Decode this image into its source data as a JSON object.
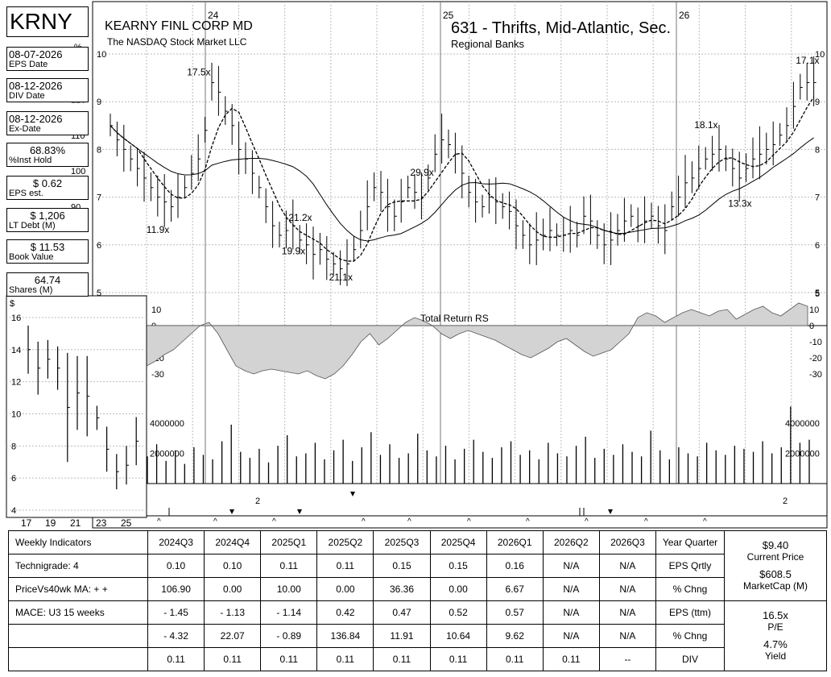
{
  "header": {
    "ticker": "KRNY",
    "company": "KEARNY FINL CORP MD",
    "exchange": "The NASDAQ Stock Market LLC",
    "industry": "631 - Thrifts, Mid-Atlantic, Sec.",
    "sector": "Regional Banks"
  },
  "info_boxes": [
    {
      "value": "08-07-2026",
      "label": "EPS Date",
      "align": "left"
    },
    {
      "value": "08-12-2026",
      "label": "DIV Date",
      "align": "left"
    },
    {
      "value": "08-12-2026",
      "label": "Ex-Date",
      "align": "left"
    },
    {
      "value": "68.83%",
      "label": "%Inst Hold",
      "align": "center"
    },
    {
      "value": "$ 0.62",
      "label": "EPS est.",
      "align": "center"
    },
    {
      "value": "$ 1,206",
      "label": "LT Debt (M)",
      "align": "center"
    },
    {
      "value": "$ 11.53",
      "label": "Book Value",
      "align": "center"
    },
    {
      "value": "64.74",
      "label": "Shares (M)",
      "align": "center"
    }
  ],
  "chart_data": [
    {
      "type": "line",
      "name": "weekly-price-chart",
      "x_labels": [
        "24",
        "25",
        "26"
      ],
      "y_ticks": [
        5,
        6,
        7,
        8,
        9,
        10
      ],
      "percent_axis_label": "%",
      "percent_ticks": [
        70,
        80,
        90,
        100,
        110,
        120,
        130
      ],
      "ylim": [
        5,
        10
      ],
      "weekly_close": [
        8.5,
        8.2,
        8.0,
        7.8,
        7.6,
        7.4,
        7.2,
        7.0,
        6.9,
        6.8,
        7.0,
        7.2,
        7.5,
        7.8,
        8.4,
        9.4,
        9.2,
        8.8,
        8.5,
        8.0,
        7.8,
        7.5,
        7.2,
        6.8,
        6.4,
        6.2,
        6.3,
        6.4,
        6.1,
        6.0,
        5.8,
        5.9,
        5.7,
        5.6,
        5.5,
        5.6,
        5.9,
        6.3,
        6.8,
        7.2,
        7.1,
        6.8,
        6.6,
        6.9,
        7.2,
        7.1,
        7.0,
        7.4,
        7.9,
        8.2,
        8.1,
        7.9,
        7.5,
        7.1,
        6.9,
        6.8,
        7.0,
        6.9,
        6.8,
        6.7,
        6.4,
        6.2,
        6.0,
        6.1,
        6.2,
        6.3,
        6.2,
        6.2,
        6.3,
        6.2,
        6.6,
        6.5,
        6.2,
        6.0,
        6.1,
        6.3,
        6.5,
        6.6,
        6.4,
        6.5,
        6.6,
        6.4,
        6.3,
        6.8,
        7.0,
        7.3,
        7.4,
        7.6,
        7.8,
        7.9,
        8.0,
        7.8,
        7.6,
        7.4,
        7.6,
        7.8,
        7.9,
        8.0,
        8.1,
        8.3,
        8.5,
        8.9,
        9.3,
        9.4,
        9.4
      ],
      "pe_annotations": [
        {
          "label": "17.5x",
          "week": 13,
          "price": 9.55
        },
        {
          "label": "11.9x",
          "week": 7,
          "price": 6.25
        },
        {
          "label": "21.2x",
          "week": 28,
          "price": 6.5
        },
        {
          "label": "19.9x",
          "week": 27,
          "price": 5.8
        },
        {
          "label": "21.1x",
          "week": 34,
          "price": 5.25
        },
        {
          "label": "29.9x",
          "week": 46,
          "price": 7.45
        },
        {
          "label": "18.1x",
          "week": 88,
          "price": 8.45
        },
        {
          "label": "13.3x",
          "week": 93,
          "price": 6.8
        },
        {
          "label": "17.1x",
          "week": 103,
          "price": 9.8
        }
      ]
    },
    {
      "type": "area",
      "name": "total-return-rs",
      "title": "Total Return RS",
      "y_ticks": [
        10,
        0,
        -10,
        -20,
        -30
      ],
      "ylim": [
        -35,
        15
      ],
      "values": [
        -25,
        -22,
        -18,
        -15,
        -10,
        -5,
        0,
        2,
        -5,
        -15,
        -25,
        -28,
        -30,
        -28,
        -27,
        -28,
        -29,
        -30,
        -28,
        -31,
        -33,
        -30,
        -25,
        -18,
        -10,
        -5,
        -12,
        -8,
        -3,
        2,
        5,
        3,
        0,
        -5,
        -8,
        -5,
        -3,
        -5,
        -7,
        -9,
        -12,
        -15,
        -18,
        -20,
        -17,
        -14,
        -10,
        -8,
        -12,
        -16,
        -19,
        -17,
        -15,
        -10,
        -5,
        5,
        8,
        6,
        2,
        5,
        8,
        10,
        8,
        6,
        9,
        10,
        4,
        7,
        10,
        12,
        8,
        6,
        10,
        14,
        12
      ]
    },
    {
      "type": "bar",
      "name": "weekly-volume",
      "y_ticks": [
        4000000,
        2000000
      ],
      "y_tick_labels": [
        "4000000",
        "2000000"
      ],
      "ylim": [
        0,
        5000000
      ],
      "values": [
        1800000,
        2600000,
        1500000,
        2200000,
        1300000,
        2400000,
        1900000,
        1600000,
        2800000,
        3900000,
        2100000,
        1700000,
        2300000,
        1400000,
        2500000,
        3200000,
        1800000,
        2000000,
        2700000,
        1600000,
        2200000,
        2900000,
        1500000,
        2400000,
        3400000,
        1900000,
        2600000,
        1700000,
        2000000,
        3300000,
        2200000,
        1800000,
        2500000,
        1600000,
        2300000,
        2900000,
        2100000,
        1700000,
        2400000,
        2800000,
        1900000,
        2200000,
        1600000,
        2700000,
        2000000,
        1800000,
        2500000,
        3100000,
        1700000,
        2300000,
        1900000,
        2600000,
        2100000,
        1800000,
        3500000,
        2200000,
        1600000,
        2400000,
        2000000,
        1800000,
        2700000,
        2200000,
        1900000,
        2500000,
        2300000,
        2100000,
        2800000,
        2000000,
        2400000,
        5100000,
        2700000,
        2900000
      ]
    },
    {
      "type": "bar",
      "name": "long-term-yearly-price",
      "axis_label": "$",
      "x_labels": [
        "17",
        "19",
        "21",
        "23",
        "25"
      ],
      "y_ticks": [
        4,
        6,
        8,
        10,
        12,
        14,
        16
      ],
      "ylim": [
        4,
        16.5
      ],
      "ranges": [
        [
          12.5,
          15.5
        ],
        [
          11.2,
          14.5
        ],
        [
          12.2,
          14.6
        ],
        [
          11.5,
          14.2
        ],
        [
          7.0,
          13.8
        ],
        [
          9.0,
          13.6
        ],
        [
          8.6,
          13.6
        ],
        [
          9.0,
          10.5
        ],
        [
          6.4,
          9.2
        ],
        [
          5.3,
          7.5
        ],
        [
          5.6,
          8.0
        ],
        [
          6.8,
          9.8
        ]
      ]
    }
  ],
  "table": {
    "header_label": "Weekly Indicators",
    "columns": [
      "2024Q3",
      "2024Q4",
      "2025Q1",
      "2025Q2",
      "2025Q3",
      "2025Q4",
      "2026Q1",
      "2026Q2",
      "2026Q3"
    ],
    "year_quarter_label": "Year Quarter",
    "rows": [
      {
        "label": "Technigrade: 4",
        "values": [
          "0.10",
          "0.10",
          "0.11",
          "0.11",
          "0.15",
          "0.15",
          "0.16",
          "N/A",
          "N/A"
        ],
        "metric": "EPS Qrtly"
      },
      {
        "label": "PriceVs40wk MA:  + +",
        "values": [
          "106.90",
          "0.00",
          "10.00",
          "0.00",
          "36.36",
          "0.00",
          "6.67",
          "N/A",
          "N/A"
        ],
        "metric": "% Chng"
      },
      {
        "label": "MACE: U3  15 weeks",
        "values": [
          "- 1.45",
          "- 1.13",
          "- 1.14",
          "0.42",
          "0.47",
          "0.52",
          "0.57",
          "N/A",
          "N/A"
        ],
        "metric": "EPS (ttm)"
      },
      {
        "label": "",
        "values": [
          "- 4.32",
          "22.07",
          "- 0.89",
          "136.84",
          "11.91",
          "10.64",
          "9.62",
          "N/A",
          "N/A"
        ],
        "metric": "% Chng"
      },
      {
        "label": "",
        "values": [
          "0.11",
          "0.11",
          "0.11",
          "0.11",
          "0.11",
          "0.11",
          "0.11",
          "0.11",
          "--"
        ],
        "metric": "DIV"
      }
    ],
    "side": {
      "price": "$9.40",
      "price_label": "Current Price",
      "marketcap": "$608.5",
      "marketcap_label": "MarketCap (M)",
      "pe": "16.5x",
      "pe_label": "P/E",
      "yield": "4.7%",
      "yield_label": "Yield"
    }
  }
}
